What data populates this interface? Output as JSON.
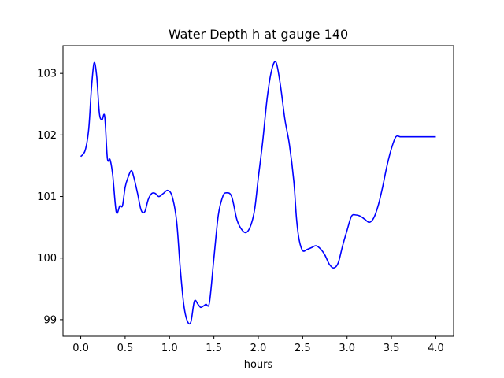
{
  "chart_data": {
    "type": "line",
    "title": "Water Depth h at gauge 140",
    "xlabel": "hours",
    "ylabel": "",
    "xlim": [
      -0.2,
      4.2
    ],
    "ylim": [
      98.73,
      103.45
    ],
    "xticks": [
      0.0,
      0.5,
      1.0,
      1.5,
      2.0,
      2.5,
      3.0,
      3.5,
      4.0
    ],
    "xtick_labels": [
      "0.0",
      "0.5",
      "1.0",
      "1.5",
      "2.0",
      "2.5",
      "3.0",
      "3.5",
      "4.0"
    ],
    "yticks": [
      99,
      100,
      101,
      102,
      103
    ],
    "ytick_labels": [
      "99",
      "100",
      "101",
      "102",
      "103"
    ],
    "grid": false,
    "series": [
      {
        "name": "",
        "color": "#0000ff",
        "x": [
          0.0,
          0.05,
          0.09,
          0.12,
          0.15,
          0.18,
          0.21,
          0.24,
          0.27,
          0.3,
          0.33,
          0.36,
          0.4,
          0.44,
          0.47,
          0.5,
          0.53,
          0.57,
          0.6,
          0.64,
          0.68,
          0.72,
          0.76,
          0.8,
          0.84,
          0.88,
          0.93,
          0.98,
          1.03,
          1.08,
          1.12,
          1.16,
          1.2,
          1.24,
          1.28,
          1.32,
          1.35,
          1.38,
          1.41,
          1.45,
          1.5,
          1.55,
          1.6,
          1.64,
          1.7,
          1.76,
          1.82,
          1.87,
          1.92,
          1.96,
          2.0,
          2.05,
          2.1,
          2.15,
          2.2,
          2.25,
          2.3,
          2.35,
          2.4,
          2.43,
          2.46,
          2.5,
          2.55,
          2.6,
          2.65,
          2.7,
          2.75,
          2.8,
          2.85,
          2.9,
          2.95,
          3.0,
          3.05,
          3.1,
          3.15,
          3.2,
          3.25,
          3.3,
          3.35,
          3.4,
          3.45,
          3.5,
          3.55,
          3.6,
          3.65,
          3.7,
          3.75,
          3.8,
          3.85,
          3.9,
          3.95,
          4.0
        ],
        "y": [
          101.65,
          101.75,
          102.1,
          102.75,
          103.17,
          102.95,
          102.35,
          102.25,
          102.3,
          101.62,
          101.6,
          101.35,
          100.75,
          100.85,
          100.85,
          101.15,
          101.3,
          101.42,
          101.3,
          101.05,
          100.78,
          100.75,
          100.95,
          101.05,
          101.05,
          101.0,
          101.05,
          101.1,
          101.0,
          100.6,
          99.85,
          99.25,
          98.98,
          98.96,
          99.3,
          99.25,
          99.2,
          99.22,
          99.25,
          99.28,
          100.0,
          100.7,
          101.0,
          101.06,
          101.0,
          100.62,
          100.45,
          100.42,
          100.55,
          100.8,
          101.3,
          101.9,
          102.6,
          103.05,
          103.18,
          102.8,
          102.25,
          101.85,
          101.25,
          100.65,
          100.3,
          100.12,
          100.14,
          100.17,
          100.2,
          100.15,
          100.05,
          99.9,
          99.84,
          99.92,
          100.2,
          100.45,
          100.68,
          100.7,
          100.68,
          100.63,
          100.58,
          100.65,
          100.85,
          101.15,
          101.5,
          101.78,
          101.97,
          101.97,
          101.97,
          101.97,
          101.97,
          101.97,
          101.97,
          101.97,
          101.97,
          101.97
        ]
      }
    ]
  }
}
